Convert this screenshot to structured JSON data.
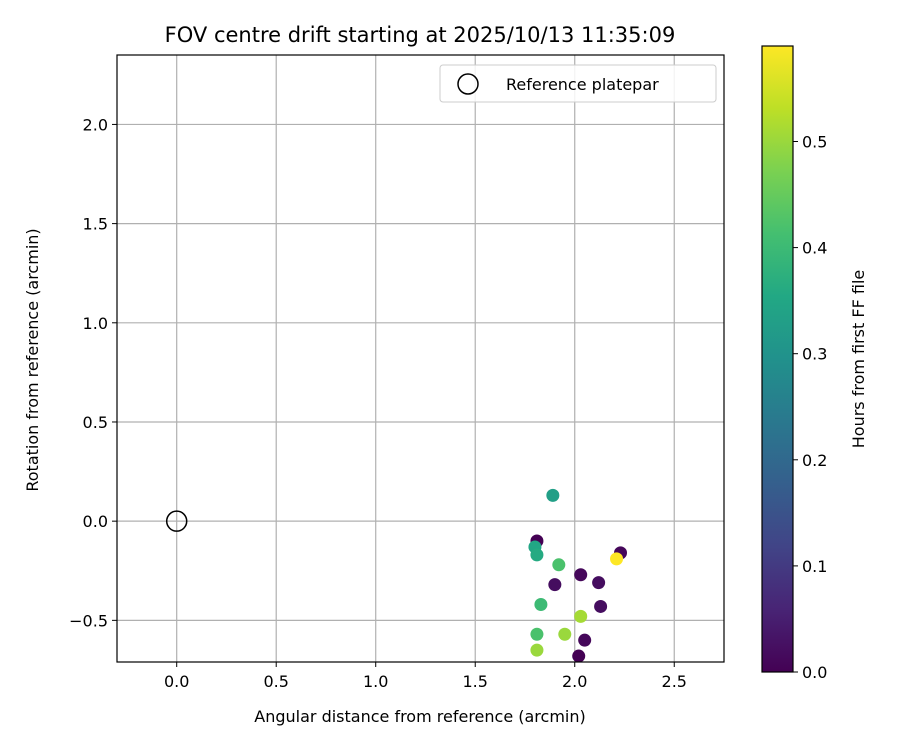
{
  "chart_data": {
    "type": "scatter",
    "title": "FOV centre drift starting at 2025/10/13 11:35:09",
    "xlabel": "Angular distance from reference (arcmin)",
    "ylabel": "Rotation from reference (arcmin)",
    "xlim": [
      -0.3,
      2.75
    ],
    "ylim": [
      -0.71,
      2.35
    ],
    "xticks": [
      0.0,
      0.5,
      1.0,
      1.5,
      2.0,
      2.5
    ],
    "xtick_labels": [
      "0.0",
      "0.5",
      "1.0",
      "1.5",
      "2.0",
      "2.5"
    ],
    "yticks": [
      -0.5,
      0.0,
      0.5,
      1.0,
      1.5,
      2.0
    ],
    "ytick_labels": [
      "−0.5",
      "0.0",
      "0.5",
      "1.0",
      "1.5",
      "2.0"
    ],
    "grid": true,
    "legend": {
      "placement": "top-right",
      "entries": [
        "Reference platepar"
      ]
    },
    "reference_point": {
      "x": 0.0,
      "y": 0.0
    },
    "colorbar": {
      "label": "Hours from first FF file",
      "range": [
        0.0,
        0.59
      ],
      "ticks": [
        0.0,
        0.1,
        0.2,
        0.3,
        0.4,
        0.5
      ],
      "tick_labels": [
        "0.0",
        "0.1",
        "0.2",
        "0.3",
        "0.4",
        "0.5"
      ],
      "colormap": "viridis"
    },
    "points": [
      {
        "x": 1.81,
        "y": -0.1,
        "hours": 0.0
      },
      {
        "x": 1.9,
        "y": -0.32,
        "hours": 0.02
      },
      {
        "x": 2.03,
        "y": -0.27,
        "hours": 0.01
      },
      {
        "x": 2.12,
        "y": -0.31,
        "hours": 0.02
      },
      {
        "x": 2.13,
        "y": -0.43,
        "hours": 0.02
      },
      {
        "x": 2.05,
        "y": -0.6,
        "hours": 0.01
      },
      {
        "x": 2.02,
        "y": -0.68,
        "hours": 0.0
      },
      {
        "x": 2.23,
        "y": -0.16,
        "hours": 0.01
      },
      {
        "x": 1.89,
        "y": 0.13,
        "hours": 0.33
      },
      {
        "x": 1.8,
        "y": -0.13,
        "hours": 0.35
      },
      {
        "x": 1.81,
        "y": -0.17,
        "hours": 0.36
      },
      {
        "x": 1.92,
        "y": -0.22,
        "hours": 0.42
      },
      {
        "x": 1.83,
        "y": -0.42,
        "hours": 0.4
      },
      {
        "x": 1.81,
        "y": -0.57,
        "hours": 0.42
      },
      {
        "x": 1.81,
        "y": -0.65,
        "hours": 0.5
      },
      {
        "x": 1.95,
        "y": -0.57,
        "hours": 0.5
      },
      {
        "x": 2.03,
        "y": -0.48,
        "hours": 0.51
      },
      {
        "x": 2.21,
        "y": -0.19,
        "hours": 0.59
      }
    ]
  }
}
